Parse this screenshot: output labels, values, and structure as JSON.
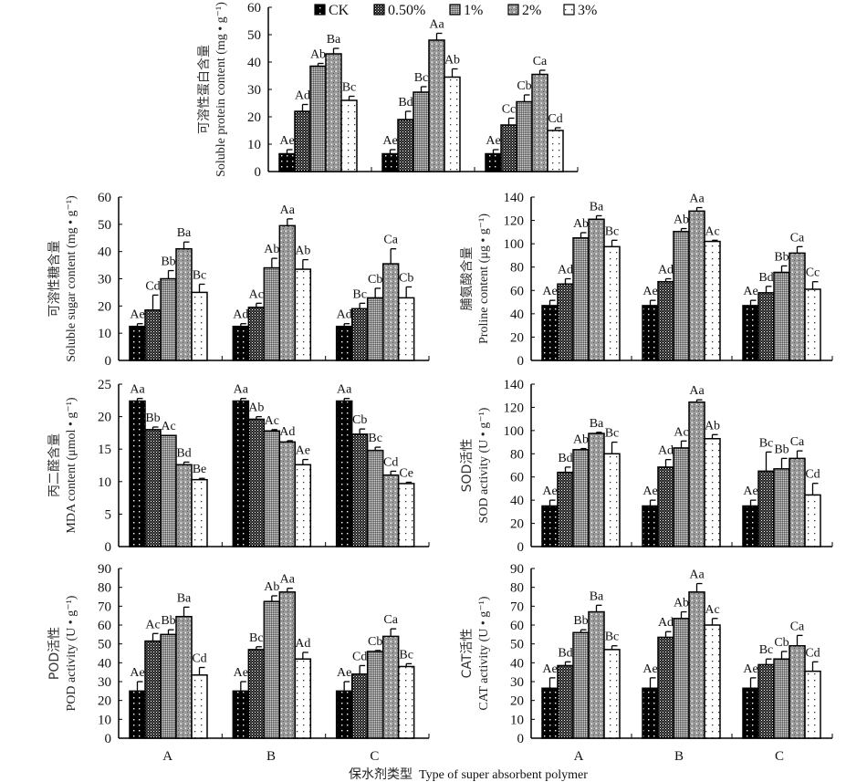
{
  "chart_data": {
    "type": "bar",
    "legend": {
      "placement": "top-center",
      "entries": [
        "CK",
        "0.50%",
        "1%",
        "2%",
        "3%"
      ]
    },
    "categories": [
      "A",
      "B",
      "C"
    ],
    "x_title_cn": "保水剂类型",
    "x_title_en": "Type of super absorbent polymer",
    "series_names": [
      "CK",
      "0.50%",
      "1%",
      "2%",
      "3%"
    ],
    "panels": [
      {
        "id": "protein",
        "ylabel_cn": "可溶性蛋白含量",
        "ylabel_en": "Soluble protein content (mg • g⁻¹)",
        "ylim": [
          0,
          60
        ],
        "yticks": [
          0,
          10,
          20,
          30,
          40,
          50,
          60
        ],
        "show_category_labels": false,
        "values": [
          [
            6.5,
            22,
            38.5,
            43,
            26
          ],
          [
            6.5,
            19,
            29,
            48,
            34.5
          ],
          [
            6.5,
            17,
            25.5,
            35.5,
            15
          ]
        ],
        "errors": [
          [
            1.5,
            2.5,
            1,
            2,
            1.5
          ],
          [
            1.5,
            3,
            2,
            2.5,
            3
          ],
          [
            1.5,
            2.5,
            2.5,
            1.5,
            1
          ]
        ],
        "labels": [
          [
            "Ae",
            "Ad",
            "Ab",
            "Ba",
            "Bc"
          ],
          [
            "Ae",
            "Bd",
            "Bc",
            "Aa",
            "Ab"
          ],
          [
            "Ae",
            "Cc",
            "Cb",
            "Ca",
            "Cd"
          ]
        ]
      },
      {
        "id": "sugar",
        "ylabel_cn": "可溶性糖含量",
        "ylabel_en": "Soluble sugar content (mg • g⁻¹)",
        "ylim": [
          0,
          60
        ],
        "yticks": [
          0,
          10,
          20,
          30,
          40,
          50,
          60
        ],
        "show_category_labels": false,
        "values": [
          [
            12.5,
            18.5,
            30,
            41,
            25
          ],
          [
            12.5,
            19.5,
            34,
            49.5,
            33.5
          ],
          [
            12.5,
            19,
            23,
            35.5,
            23
          ]
        ],
        "errors": [
          [
            1,
            5.5,
            3,
            2.5,
            3
          ],
          [
            1,
            1.5,
            3.5,
            2.5,
            3.5
          ],
          [
            1,
            2,
            3.5,
            5.5,
            4
          ]
        ],
        "labels": [
          [
            "Ae",
            "Cd",
            "Bb",
            "Ba",
            "Bc"
          ],
          [
            "Ad",
            "Ac",
            "Ab",
            "Aa",
            "Ab"
          ],
          [
            "Ad",
            "Bc",
            "Cb",
            "Ca",
            "Cb"
          ]
        ]
      },
      {
        "id": "proline",
        "ylabel_cn": "脯氨酸含量",
        "ylabel_en": "Proline content (μg • g⁻¹)",
        "ylim": [
          0,
          140
        ],
        "yticks": [
          0,
          20,
          40,
          60,
          80,
          100,
          120,
          140
        ],
        "show_category_labels": false,
        "values": [
          [
            47,
            65.5,
            105,
            121,
            97.5
          ],
          [
            47,
            67.5,
            110.5,
            128,
            102
          ],
          [
            47,
            58,
            75.5,
            92,
            61
          ]
        ],
        "errors": [
          [
            4.5,
            4.5,
            4.5,
            3,
            5.5
          ],
          [
            4.5,
            2.5,
            2.5,
            3,
            1
          ],
          [
            4.5,
            5.5,
            5.5,
            5.5,
            6.5
          ]
        ],
        "labels": [
          [
            "Ae",
            "Ad",
            "Ab",
            "Ba",
            "Bc"
          ],
          [
            "Ae",
            "Ad",
            "Ab",
            "Aa",
            "Ac"
          ],
          [
            "Ae",
            "Bd",
            "Bb",
            "Ca",
            "Cc"
          ]
        ]
      },
      {
        "id": "mda",
        "ylabel_cn": "丙二醛含量",
        "ylabel_en": "MDA content (μmol • g⁻¹)",
        "ylim": [
          0,
          25
        ],
        "yticks": [
          0,
          5,
          10,
          15,
          20,
          25
        ],
        "show_category_labels": false,
        "values": [
          [
            22.4,
            18,
            17.1,
            12.6,
            10.3
          ],
          [
            22.4,
            19.6,
            17.8,
            16.1,
            12.6
          ],
          [
            22.4,
            17.3,
            14.8,
            11,
            9.7
          ]
        ],
        "errors": [
          [
            0.4,
            0.4,
            0,
            0.4,
            0.2
          ],
          [
            0.4,
            0.4,
            0.2,
            0.2,
            0.8
          ],
          [
            0.4,
            0.8,
            0.5,
            0.6,
            0.2
          ]
        ],
        "labels": [
          [
            "Aa",
            "Bb",
            "Ac",
            "Bd",
            "Be"
          ],
          [
            "Aa",
            "Ab",
            "Ac",
            "Ad",
            "Ae"
          ],
          [
            "Aa",
            "Cb",
            "Bc",
            "Cd",
            "Ce"
          ]
        ]
      },
      {
        "id": "sod",
        "ylabel_cn": "SOD活性",
        "ylabel_en": "SOD activity (U • g⁻¹)",
        "ylim": [
          0,
          140
        ],
        "yticks": [
          0,
          20,
          40,
          60,
          80,
          100,
          120,
          140
        ],
        "show_category_labels": false,
        "values": [
          [
            35,
            64,
            83.5,
            97.5,
            80
          ],
          [
            35,
            68.5,
            85,
            124.5,
            93
          ],
          [
            35,
            65,
            67,
            76,
            44.5
          ]
        ],
        "errors": [
          [
            5,
            4.5,
            1,
            1,
            10
          ],
          [
            5,
            6.5,
            6,
            2,
            3.5
          ],
          [
            5,
            16.5,
            9,
            6.5,
            10
          ]
        ],
        "labels": [
          [
            "Ae",
            "Bd",
            "Ab",
            "Ba",
            "Bc"
          ],
          [
            "Ae",
            "Ad",
            "Ac",
            "Aa",
            "Ab"
          ],
          [
            "Ae",
            "Bc",
            "Bb",
            "Ca",
            "Cd"
          ]
        ]
      },
      {
        "id": "pod",
        "ylabel_cn": "POD活性",
        "ylabel_en": "POD activity (U • g⁻¹)",
        "ylim": [
          0,
          90
        ],
        "yticks": [
          0,
          10,
          20,
          30,
          40,
          50,
          60,
          70,
          80,
          90
        ],
        "show_category_labels": true,
        "values": [
          [
            25,
            51.5,
            55,
            64.5,
            33.5
          ],
          [
            25,
            47,
            72.5,
            77.5,
            42
          ],
          [
            25,
            34,
            46,
            54,
            38
          ]
        ],
        "errors": [
          [
            5,
            4,
            2.5,
            5,
            4
          ],
          [
            5,
            1.5,
            3,
            2,
            3.5
          ],
          [
            5,
            4.5,
            0.5,
            4,
            1.5
          ]
        ],
        "labels": [
          [
            "Ae",
            "Ac",
            "Bb",
            "Ba",
            "Cd"
          ],
          [
            "Ae",
            "Bc",
            "Ab",
            "Aa",
            "Ad"
          ],
          [
            "Ae",
            "Cd",
            "Cb",
            "Ca",
            "Bc"
          ]
        ]
      },
      {
        "id": "cat",
        "ylabel_cn": "CAT活性",
        "ylabel_en": "CAT activity (U • g⁻¹)",
        "ylim": [
          0,
          90
        ],
        "yticks": [
          0,
          10,
          20,
          30,
          40,
          50,
          60,
          70,
          80,
          90
        ],
        "show_category_labels": true,
        "values": [
          [
            26.5,
            38.5,
            56,
            67,
            47
          ],
          [
            26.5,
            53.5,
            63.5,
            77.5,
            60
          ],
          [
            26.5,
            39,
            42,
            49,
            35.5
          ]
        ],
        "errors": [
          [
            5.5,
            2,
            1.5,
            3.5,
            2
          ],
          [
            5.5,
            3,
            3.5,
            4.5,
            3.5
          ],
          [
            5.5,
            3,
            4,
            5.5,
            5
          ]
        ],
        "labels": [
          [
            "Ae",
            "Bd",
            "Bb",
            "Ba",
            "Bc"
          ],
          [
            "Ae",
            "Ad",
            "Ab",
            "Aa",
            "Ac"
          ],
          [
            "Ae",
            "Bc",
            "Cb",
            "Ca",
            "Cd"
          ]
        ]
      }
    ]
  }
}
